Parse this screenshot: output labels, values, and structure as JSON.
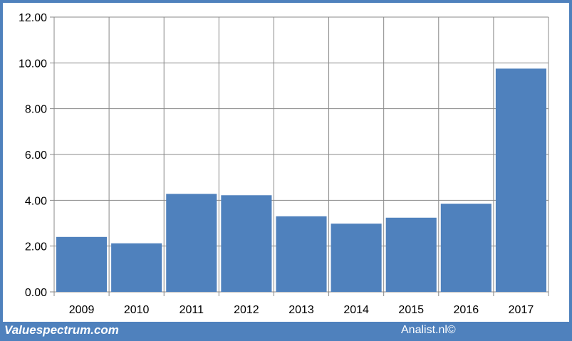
{
  "chart_data": {
    "type": "bar",
    "categories": [
      "2009",
      "2010",
      "2011",
      "2012",
      "2013",
      "2014",
      "2015",
      "2016",
      "2017"
    ],
    "values": [
      2.4,
      2.12,
      4.28,
      4.22,
      3.3,
      2.98,
      3.24,
      3.85,
      9.75
    ],
    "title": "",
    "xlabel": "",
    "ylabel": "",
    "ylim": [
      0,
      12
    ],
    "yticks": [
      "0.00",
      "2.00",
      "4.00",
      "6.00",
      "8.00",
      "10.00",
      "12.00"
    ],
    "grid": true,
    "bar_color": "#4f81bd"
  },
  "footer": {
    "left_text": "Valuespectrum.com",
    "right_text": "Analist.nl©"
  },
  "colors": {
    "frame": "#4f81bd",
    "plot_background": "#ffffff",
    "gridline": "#888888"
  }
}
